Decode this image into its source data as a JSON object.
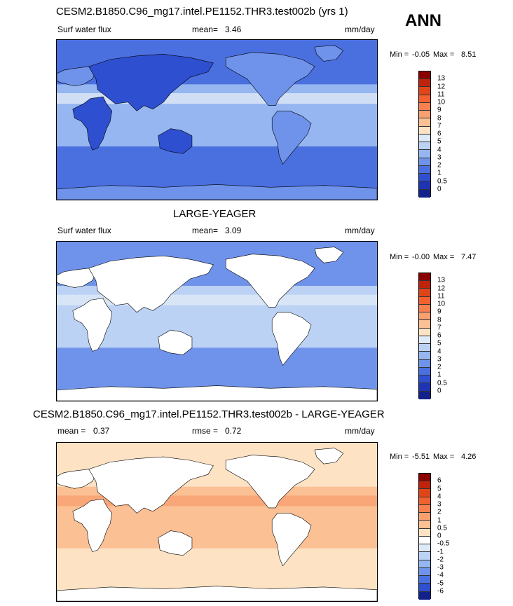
{
  "season": "ANN",
  "chart_data": [
    {
      "type": "heatmap",
      "title": "CESM2.B1850.C96_mg17.intel.PE1152.THR3.test002b (yrs 1)",
      "variable": "Surf water flux",
      "mean_label": "mean=",
      "mean": "3.46",
      "units": "mm/day",
      "min_label": "Min =",
      "min": "-0.05",
      "max_label": "Max =",
      "max": "8.51",
      "levels": [
        "13",
        "12",
        "11",
        "10",
        "9",
        "8",
        "7",
        "6",
        "5",
        "4",
        "3",
        "2",
        "1",
        "0.5",
        "0"
      ],
      "colors": [
        "#8b0000",
        "#c0230c",
        "#e0451a",
        "#f2612f",
        "#f7804f",
        "#f9a070",
        "#fbc094",
        "#fde2c4",
        "#dfeaf8",
        "#bbd2f5",
        "#95b6f0",
        "#6f93ea",
        "#4a6fdf",
        "#2f4fd1",
        "#1f34b4",
        "#12228a"
      ],
      "region_colors": {
        "ocean": "#4a6fdf",
        "ocean_tropics": "#95b6f0",
        "land": "#6f93ea",
        "land_dry": "#2f4fd1",
        "itcz": "#dfeaf8"
      }
    },
    {
      "type": "heatmap",
      "title": "LARGE-YEAGER",
      "variable": "Surf water flux",
      "mean_label": "mean=",
      "mean": "3.09",
      "units": "mm/day",
      "min_label": "Min =",
      "min": "-0.00",
      "max_label": "Max =",
      "max": "7.47",
      "levels": [
        "13",
        "12",
        "11",
        "10",
        "9",
        "8",
        "7",
        "6",
        "5",
        "4",
        "3",
        "2",
        "1",
        "0.5",
        "0"
      ],
      "colors": [
        "#8b0000",
        "#c0230c",
        "#e0451a",
        "#f2612f",
        "#f7804f",
        "#f9a070",
        "#fbc094",
        "#fde2c4",
        "#dfeaf8",
        "#bbd2f5",
        "#95b6f0",
        "#6f93ea",
        "#4a6fdf",
        "#2f4fd1",
        "#1f34b4",
        "#12228a"
      ],
      "region_colors": {
        "ocean": "#6f93ea",
        "ocean_tropics": "#bbd2f5",
        "land": "#ffffff",
        "land_dry": "#ffffff",
        "itcz": "#dfeaf8"
      }
    },
    {
      "type": "heatmap",
      "title": "CESM2.B1850.C96_mg17.intel.PE1152.THR3.test002b - LARGE-YEAGER",
      "mean_label": "mean =",
      "mean": "0.37",
      "rmse_label": "rmse =",
      "rmse": "0.72",
      "units": "mm/day",
      "min_label": "Min =",
      "min": "-5.51",
      "max_label": "Max =",
      "max": "4.26",
      "levels": [
        "6",
        "5",
        "4",
        "3",
        "2",
        "1",
        "0.5",
        "0",
        "-0.5",
        "-1",
        "-2",
        "-3",
        "-4",
        "-5",
        "-6"
      ],
      "colors": [
        "#8b0000",
        "#c0230c",
        "#e0451a",
        "#f2612f",
        "#f7804f",
        "#f9a070",
        "#fbc094",
        "#fde2c4",
        "#ffffff",
        "#dfeaf8",
        "#bbd2f5",
        "#95b6f0",
        "#6f93ea",
        "#4a6fdf",
        "#2f4fd1",
        "#12228a"
      ],
      "region_colors": {
        "ocean": "#fde2c4",
        "ocean_tropics": "#fbc094",
        "land": "#ffffff",
        "land_dry": "#ffffff",
        "itcz": "#f9a070"
      }
    }
  ]
}
